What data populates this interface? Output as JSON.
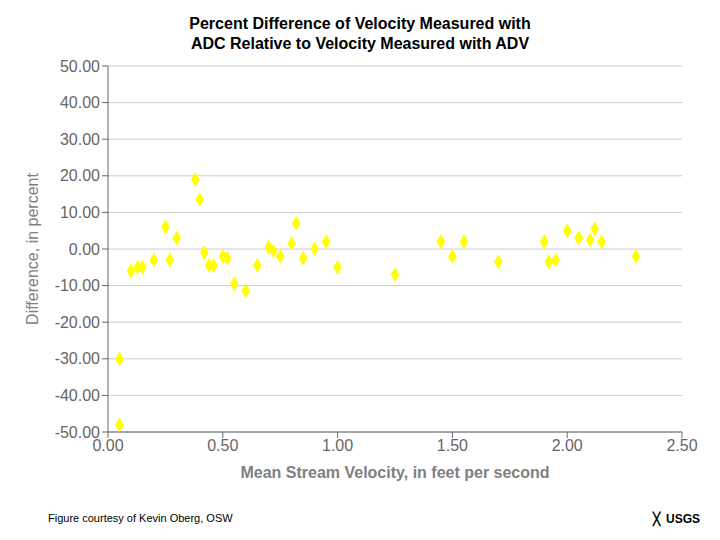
{
  "chart_data": {
    "type": "scatter",
    "title": "Percent Difference of Velocity Measured with\nADC Relative to Velocity Measured with ADV",
    "xlabel": "Mean Stream Velocity, in feet per second",
    "ylabel": "Difference, in percent",
    "annotations": [
      "Figure courtesy of Kevin Oberg, OSW",
      "USGS",
      "╳"
    ],
    "color": "#ffff00",
    "marker": "diamond",
    "grid": "y",
    "xlim": [
      0.0,
      2.5
    ],
    "ylim": [
      -50.0,
      50.0
    ],
    "xticks": [
      {
        "value": 0.0,
        "label": "0.00"
      },
      {
        "value": 0.5,
        "label": "0.50"
      },
      {
        "value": 1.0,
        "label": "1.00"
      },
      {
        "value": 1.5,
        "label": "1.50"
      },
      {
        "value": 2.0,
        "label": "2.00"
      },
      {
        "value": 2.5,
        "label": "2.50"
      }
    ],
    "yticks": [
      {
        "value": -50.0,
        "label": "-50.00"
      },
      {
        "value": -40.0,
        "label": "-40.00"
      },
      {
        "value": -30.0,
        "label": "-30.00"
      },
      {
        "value": -20.0,
        "label": "-20.00"
      },
      {
        "value": -10.0,
        "label": "-10.00"
      },
      {
        "value": 0.0,
        "label": "0.00"
      },
      {
        "value": 10.0,
        "label": "10.00"
      },
      {
        "value": 20.0,
        "label": "20.00"
      },
      {
        "value": 30.0,
        "label": "30.00"
      },
      {
        "value": 40.0,
        "label": "40.00"
      },
      {
        "value": 50.0,
        "label": "50.00"
      }
    ],
    "x": [
      0.05,
      0.05,
      0.1,
      0.13,
      0.15,
      0.2,
      0.25,
      0.27,
      0.3,
      0.38,
      0.4,
      0.42,
      0.44,
      0.46,
      0.5,
      0.52,
      0.55,
      0.6,
      0.65,
      0.7,
      0.72,
      0.75,
      0.8,
      0.82,
      0.85,
      0.9,
      0.95,
      1.0,
      1.25,
      1.45,
      1.5,
      1.55,
      1.7,
      1.9,
      1.92,
      1.95,
      2.0,
      2.05,
      2.1,
      2.12,
      2.15,
      2.3
    ],
    "values": [
      -48.0,
      -30.0,
      -6.0,
      -5.0,
      -5.0,
      -3.0,
      6.0,
      -3.0,
      3.0,
      19.0,
      13.5,
      -1.0,
      -4.5,
      -4.5,
      -2.0,
      -2.5,
      -9.5,
      -11.5,
      -4.5,
      0.5,
      -0.5,
      -2.0,
      1.5,
      7.0,
      -2.5,
      0.0,
      2.0,
      -5.0,
      -7.0,
      2.0,
      -2.0,
      2.0,
      -3.5,
      2.0,
      -3.5,
      -3.0,
      5.0,
      3.0,
      2.5,
      5.5,
      2.0,
      -2.0
    ]
  }
}
